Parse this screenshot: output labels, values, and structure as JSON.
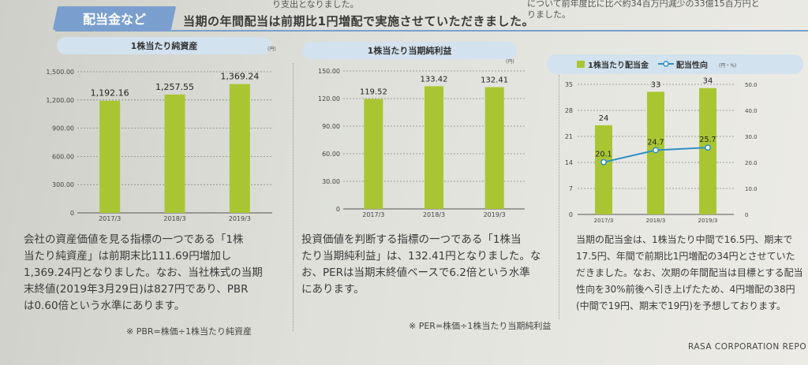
{
  "top_fragments": [
    "り支出となりました。",
    "について前年度比に比べ約34百万円減少の33億15百万円と",
    "りました。"
  ],
  "section_tab": "配当金など",
  "headline": "当期の年間配当は前期比1円増配で実施させていただきました。",
  "charts": [
    {
      "title": "1株当たり純資産",
      "unit": "(円)",
      "chart_data": {
        "type": "bar",
        "title": "1株当たり純資産",
        "categories": [
          "2017/3",
          "2018/3",
          "2019/3"
        ],
        "values": [
          1192.16,
          1257.55,
          1369.24
        ],
        "value_labels": [
          "1,192.16",
          "1,257.55",
          "1,369.24"
        ],
        "ylim": [
          0,
          1500
        ],
        "yticks": [
          "0",
          "300.00",
          "600.00",
          "900.00",
          "1,200.00",
          "1,500.00"
        ],
        "ytick_values": [
          0,
          300,
          600,
          900,
          1200,
          1500
        ],
        "bar_color": "#a9c632",
        "grid": true
      }
    },
    {
      "title": "1株当たり当期純利益",
      "unit": "(円)",
      "chart_data": {
        "type": "bar",
        "title": "1株当たり当期純利益",
        "categories": [
          "2017/3",
          "2018/3",
          "2019/3"
        ],
        "values": [
          119.52,
          133.42,
          132.41
        ],
        "value_labels": [
          "119.52",
          "133.42",
          "132.41"
        ],
        "ylim": [
          0,
          150
        ],
        "yticks": [
          "0",
          "30.00",
          "60.00",
          "90.00",
          "120.00",
          "150.00"
        ],
        "ytick_values": [
          0,
          30,
          60,
          90,
          120,
          150
        ],
        "bar_color": "#a9c632",
        "grid": true
      }
    },
    {
      "legend": [
        "1株当たり配当金",
        "配当性向"
      ],
      "unit": "(円・%)",
      "chart_data": {
        "type": "bar",
        "categories": [
          "2017/3",
          "2018/3",
          "2019/3"
        ],
        "series": [
          {
            "name": "1株当たり配当金",
            "type": "bar",
            "values": [
              24,
              33,
              34
            ],
            "value_labels": [
              "24",
              "33",
              "34"
            ],
            "color": "#a9c632"
          },
          {
            "name": "配当性向",
            "type": "line",
            "axis": "right",
            "values": [
              20.1,
              24.7,
              25.7
            ],
            "value_labels": [
              "20.1",
              "24.7",
              "25.7"
            ],
            "color": "#2f8fc4"
          }
        ],
        "ylim": [
          0,
          35
        ],
        "yticks": [
          "0",
          "7",
          "14",
          "21",
          "28",
          "35"
        ],
        "ytick_values": [
          0,
          7,
          14,
          21,
          28,
          35
        ],
        "y2lim": [
          0,
          50
        ],
        "y2ticks": [
          "0",
          "10.0",
          "20.0",
          "30.0",
          "40.0",
          "50.0"
        ],
        "y2tick_values": [
          0,
          10,
          20,
          30,
          40,
          50
        ],
        "legend_position": "top",
        "grid": true
      }
    }
  ],
  "descriptions": [
    [
      "会社の資産価値を見る指標の一つである「1株",
      "当たり純資産」は前期末比111.69円増加し",
      "1,369.24円となりました。なお、当社株式の当期",
      "末終値(2019年3月29日)は827円であり、PBR",
      "は0.60倍という水準にあります。"
    ],
    [
      "投資価値を判断する指標の一つである「1株当",
      "たり当期純利益」は、132.41円となりました。な",
      "お、PERは当期末終値ベースで6.2倍という水準",
      "にあります。"
    ],
    [
      "当期の配当金は、1株当たり中間で16.5円、期末で",
      "17.5円、年間で前期比1円増配の34円とさせていた",
      "だきました。なお、次期の年間配当は目標とする配当",
      "性向を30%前後へ引き上げたため、4円増配の38円",
      "(中間で19円、期末で19円)を予想しております。"
    ]
  ],
  "notes": [
    "※ PBR=株価÷1株当たり純資産",
    "※ PER=株価÷1株当たり当期純利益"
  ],
  "footer": "RASA CORPORATION REPO"
}
